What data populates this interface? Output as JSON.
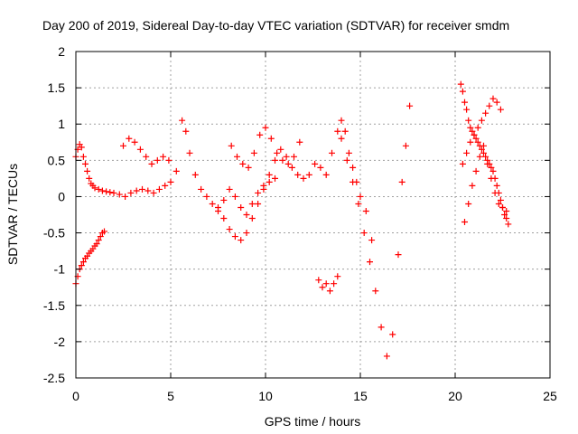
{
  "chart_data": {
    "type": "scatter",
    "title": "Day 200 of 2019, Sidereal Day-to-day VTEC variation (SDTVAR) for receiver smdm",
    "xlabel": "GPS time / hours",
    "ylabel": "SDTVAR / TECUs",
    "xlim": [
      0,
      25
    ],
    "ylim": [
      -2.5,
      2
    ],
    "xticks": [
      0,
      5,
      10,
      15,
      20,
      25
    ],
    "xtick_labels": [
      "0",
      "5",
      "10",
      "15",
      "20",
      "25"
    ],
    "yticks": [
      -2.5,
      -2,
      -1.5,
      -1,
      -0.5,
      0,
      0.5,
      1,
      1.5,
      2
    ],
    "ytick_labels": [
      "-2.5",
      "-2",
      "-1.5",
      "-1",
      "-0.5",
      "0",
      "0.5",
      "1",
      "1.5",
      "2"
    ],
    "grid": true,
    "marker": "+",
    "color": "#ff0000",
    "series": [
      {
        "name": "SDTVAR",
        "x": [
          0.0,
          0.1,
          0.2,
          0.3,
          0.4,
          0.5,
          0.6,
          0.7,
          0.8,
          0.9,
          1.0,
          1.2,
          1.4,
          1.6,
          1.8,
          2.0,
          2.3,
          2.6,
          2.9,
          3.2,
          3.5,
          3.8,
          4.1,
          4.4,
          4.7,
          5.0,
          5.3,
          5.6,
          5.8,
          6.0,
          6.3,
          6.6,
          6.9,
          7.2,
          7.5,
          7.8,
          8.1,
          8.4,
          8.7,
          9.0,
          9.3,
          9.6,
          9.9,
          10.2,
          10.5,
          10.8,
          11.1,
          11.4,
          11.7,
          12.0,
          12.3,
          12.6,
          12.9,
          13.2,
          13.5,
          13.8,
          14.0,
          14.3,
          14.6,
          14.9,
          15.2,
          15.5,
          15.8,
          16.1,
          16.4,
          16.7,
          17.0,
          17.2,
          17.4,
          17.6,
          0.0,
          0.1,
          0.2,
          0.3,
          0.4,
          0.5,
          0.6,
          0.7,
          0.8,
          0.9,
          1.0,
          1.1,
          1.2,
          1.3,
          1.4,
          1.5,
          2.5,
          2.8,
          3.1,
          3.4,
          3.7,
          4.0,
          4.3,
          4.6,
          4.9,
          8.2,
          8.5,
          8.8,
          9.1,
          9.4,
          9.7,
          10.0,
          10.3,
          10.6,
          10.9,
          11.2,
          11.5,
          11.8,
          7.5,
          7.8,
          8.1,
          8.4,
          8.7,
          9.0,
          9.3,
          9.6,
          9.9,
          10.2,
          10.5,
          12.8,
          13.0,
          13.2,
          13.4,
          13.6,
          13.8,
          14.0,
          14.2,
          14.4,
          14.6,
          14.8,
          15.0,
          15.3,
          15.6,
          20.3,
          20.4,
          20.5,
          20.6,
          20.7,
          20.8,
          20.9,
          21.0,
          21.1,
          21.2,
          21.3,
          21.4,
          21.5,
          21.6,
          21.7,
          21.8,
          21.9,
          22.0,
          22.1,
          22.2,
          22.3,
          22.4,
          22.5,
          22.6,
          22.7,
          22.8,
          20.4,
          20.6,
          20.8,
          21.0,
          21.2,
          21.4,
          21.6,
          21.8,
          22.0,
          22.2,
          22.4,
          20.5,
          20.7,
          20.9,
          21.1,
          21.3,
          21.5,
          21.7,
          21.9,
          22.1,
          22.3,
          22.5,
          22.7
        ],
        "y": [
          0.55,
          0.65,
          0.72,
          0.68,
          0.55,
          0.45,
          0.35,
          0.25,
          0.18,
          0.15,
          0.12,
          0.1,
          0.08,
          0.07,
          0.06,
          0.05,
          0.03,
          0.0,
          0.05,
          0.08,
          0.1,
          0.08,
          0.05,
          0.1,
          0.15,
          0.2,
          0.35,
          1.05,
          0.9,
          0.6,
          0.3,
          0.1,
          0.0,
          -0.1,
          -0.2,
          -0.3,
          -0.45,
          -0.55,
          -0.6,
          -0.5,
          -0.3,
          -0.1,
          0.1,
          0.3,
          0.5,
          0.65,
          0.55,
          0.4,
          0.3,
          0.25,
          0.3,
          0.45,
          0.4,
          0.3,
          0.6,
          0.9,
          0.8,
          0.5,
          0.2,
          -0.1,
          -0.5,
          -0.9,
          -1.3,
          -1.8,
          -2.2,
          -1.9,
          -0.8,
          0.2,
          0.7,
          1.25,
          -1.2,
          -1.1,
          -1.0,
          -0.95,
          -0.9,
          -0.85,
          -0.82,
          -0.78,
          -0.75,
          -0.72,
          -0.68,
          -0.65,
          -0.6,
          -0.55,
          -0.5,
          -0.48,
          0.7,
          0.8,
          0.75,
          0.65,
          0.55,
          0.45,
          0.5,
          0.55,
          0.5,
          0.7,
          0.55,
          0.45,
          0.4,
          0.6,
          0.85,
          0.95,
          0.8,
          0.6,
          0.5,
          0.45,
          0.55,
          0.75,
          -0.15,
          -0.05,
          0.1,
          0.0,
          -0.15,
          -0.25,
          -0.1,
          0.05,
          0.15,
          0.2,
          0.25,
          -1.15,
          -1.25,
          -1.2,
          -1.3,
          -1.2,
          -1.1,
          1.05,
          0.9,
          0.6,
          0.4,
          0.2,
          0.0,
          -0.2,
          -0.6,
          1.55,
          1.45,
          1.3,
          1.2,
          1.05,
          0.95,
          0.9,
          0.85,
          0.8,
          0.75,
          0.7,
          0.65,
          0.6,
          0.55,
          0.5,
          0.45,
          0.4,
          0.35,
          0.25,
          0.15,
          0.05,
          -0.05,
          -0.15,
          -0.25,
          -0.3,
          -0.38,
          0.45,
          0.6,
          0.75,
          0.85,
          0.95,
          1.05,
          1.15,
          1.25,
          1.35,
          1.3,
          1.2,
          -0.35,
          -0.1,
          0.15,
          0.35,
          0.55,
          0.7,
          0.45,
          0.25,
          0.05,
          -0.1,
          -0.15,
          -0.2
        ]
      }
    ]
  }
}
